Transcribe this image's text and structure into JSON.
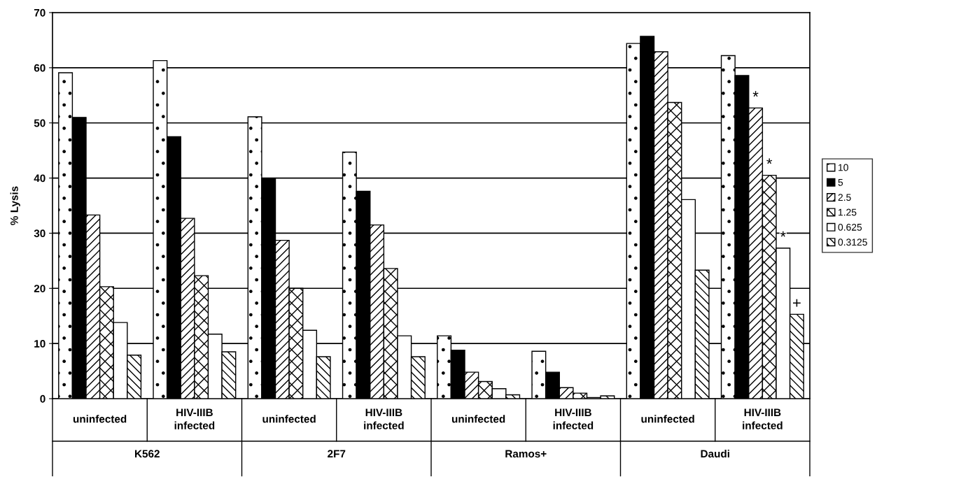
{
  "chart_data": {
    "type": "bar",
    "ylabel": "% Lysis",
    "categories": [
      "uninfected",
      "HIV-IIIB\ninfected",
      "uninfected",
      "HIV-IIIB\ninfected",
      "uninfected",
      "HIV-IIIB\ninfected",
      "uninfected",
      "HIV-IIIB\ninfected"
    ],
    "annotations": [
      "K562",
      "2F7",
      "Ramos+",
      "Daudi"
    ],
    "series": [
      {
        "name": "10",
        "color": "#ffffff",
        "values": [
          59.1,
          61.3,
          51.1,
          44.7,
          11.4,
          8.6,
          64.4,
          62.2
        ]
      },
      {
        "name": "5",
        "color": "#000000",
        "values": [
          51.0,
          47.5,
          40.0,
          37.6,
          8.8,
          4.8,
          65.7,
          58.6
        ]
      },
      {
        "name": "2.5",
        "color": "#ffffff",
        "values": [
          33.3,
          32.7,
          28.7,
          31.5,
          4.8,
          2.0,
          62.9,
          52.7
        ],
        "value_labels": [
          null,
          null,
          null,
          null,
          null,
          null,
          null,
          "*"
        ]
      },
      {
        "name": "1.25",
        "color": "#ffffff",
        "values": [
          20.3,
          22.3,
          20.0,
          23.6,
          3.1,
          1.0,
          53.7,
          40.5
        ],
        "value_labels": [
          null,
          null,
          null,
          null,
          null,
          null,
          null,
          "*"
        ]
      },
      {
        "name": "0.625",
        "color": "#ffffff",
        "values": [
          13.8,
          11.7,
          12.4,
          11.4,
          1.8,
          0.2,
          36.1,
          27.3
        ],
        "value_labels": [
          null,
          null,
          null,
          null,
          null,
          null,
          null,
          "*"
        ]
      },
      {
        "name": "0.3125",
        "color": "#ffffff",
        "values": [
          7.9,
          8.5,
          7.6,
          7.6,
          0.7,
          0.5,
          23.3,
          15.3
        ],
        "value_labels": [
          null,
          null,
          null,
          null,
          null,
          null,
          null,
          "+"
        ]
      }
    ],
    "ylim": [
      0,
      70
    ],
    "yticks": [
      0,
      10,
      20,
      30,
      40,
      50,
      60,
      70
    ],
    "grid": "y",
    "legend": "right"
  }
}
